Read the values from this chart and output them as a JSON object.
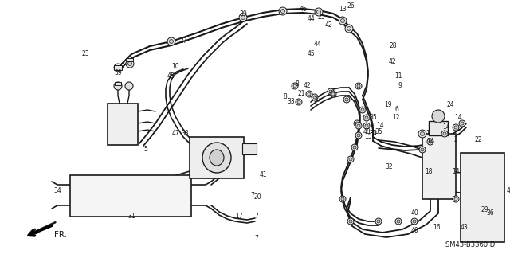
{
  "background_color": "#ffffff",
  "line_color": "#1a1a1a",
  "text_color": "#1a1a1a",
  "fig_width": 6.4,
  "fig_height": 3.19,
  "dpi": 100,
  "diagram_code": "SM43-B3360 D"
}
